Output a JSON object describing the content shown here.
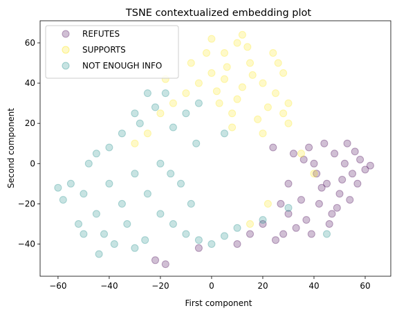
{
  "chart_data": {
    "type": "scatter",
    "title": "TSNE contextualized embedding plot",
    "xlabel": "First component",
    "ylabel": "Second component",
    "xlim": [
      -67,
      70
    ],
    "ylim": [
      -56,
      71
    ],
    "xticks": [
      -60,
      -40,
      -20,
      0,
      20,
      40,
      60
    ],
    "yticks": [
      -40,
      -20,
      0,
      20,
      40,
      60
    ],
    "grid": false,
    "legend_position": "top-left",
    "point_alpha": 0.25,
    "series": [
      {
        "name": "REFUTES",
        "color": "#440154",
        "points": [
          [
            48,
            5
          ],
          [
            52,
            0
          ],
          [
            55,
            -5
          ],
          [
            45,
            -10
          ],
          [
            40,
            0
          ],
          [
            58,
            2
          ],
          [
            50,
            -15
          ],
          [
            42,
            -20
          ],
          [
            35,
            -18
          ],
          [
            30,
            -25
          ],
          [
            38,
            8
          ],
          [
            44,
            10
          ],
          [
            60,
            -3
          ],
          [
            62,
            -1
          ],
          [
            47,
            -25
          ],
          [
            33,
            -32
          ],
          [
            28,
            -35
          ],
          [
            25,
            -38
          ],
          [
            20,
            -30
          ],
          [
            36,
            2
          ],
          [
            53,
            10
          ],
          [
            57,
            -10
          ],
          [
            41,
            -5
          ],
          [
            46,
            -30
          ],
          [
            39,
            -35
          ],
          [
            32,
            5
          ],
          [
            30,
            -10
          ],
          [
            27,
            -20
          ],
          [
            49,
            -22
          ],
          [
            54,
            -18
          ],
          [
            -22,
            -48
          ],
          [
            -18,
            -50
          ],
          [
            15,
            -35
          ],
          [
            10,
            -40
          ],
          [
            -5,
            -42
          ],
          [
            24,
            8
          ],
          [
            56,
            6
          ],
          [
            43,
            -12
          ],
          [
            37,
            -28
          ],
          [
            51,
            -8
          ]
        ]
      },
      {
        "name": "SUPPORTS",
        "color": "#fde725",
        "points": [
          [
            5,
            55
          ],
          [
            10,
            60
          ],
          [
            0,
            45
          ],
          [
            15,
            50
          ],
          [
            20,
            40
          ],
          [
            25,
            35
          ],
          [
            28,
            45
          ],
          [
            12,
            38
          ],
          [
            3,
            30
          ],
          [
            8,
            25
          ],
          [
            -5,
            40
          ],
          [
            -10,
            35
          ],
          [
            18,
            22
          ],
          [
            22,
            28
          ],
          [
            -15,
            30
          ],
          [
            0,
            62
          ],
          [
            6,
            48
          ],
          [
            14,
            58
          ],
          [
            26,
            50
          ],
          [
            30,
            20
          ],
          [
            -8,
            50
          ],
          [
            10,
            32
          ],
          [
            16,
            44
          ],
          [
            2,
            36
          ],
          [
            -2,
            55
          ],
          [
            24,
            55
          ],
          [
            12,
            64
          ],
          [
            20,
            15
          ],
          [
            -20,
            25
          ],
          [
            30,
            30
          ],
          [
            -18,
            42
          ],
          [
            8,
            18
          ],
          [
            28,
            25
          ],
          [
            -25,
            15
          ],
          [
            35,
            5
          ],
          [
            40,
            -5
          ],
          [
            22,
            -20
          ],
          [
            15,
            -30
          ],
          [
            -30,
            10
          ],
          [
            5,
            42
          ]
        ]
      },
      {
        "name": "NOT ENOUGH INFO",
        "color": "#21908d",
        "points": [
          [
            -40,
            -10
          ],
          [
            -50,
            -15
          ],
          [
            -35,
            -20
          ],
          [
            -45,
            -25
          ],
          [
            -55,
            -10
          ],
          [
            -30,
            -5
          ],
          [
            -25,
            -15
          ],
          [
            -20,
            -25
          ],
          [
            -15,
            -30
          ],
          [
            -10,
            -35
          ],
          [
            -5,
            -38
          ],
          [
            0,
            -40
          ],
          [
            5,
            -36
          ],
          [
            10,
            -32
          ],
          [
            -42,
            -35
          ],
          [
            -38,
            -40
          ],
          [
            -30,
            -42
          ],
          [
            -52,
            -30
          ],
          [
            -58,
            -18
          ],
          [
            -60,
            -12
          ],
          [
            -48,
            0
          ],
          [
            -40,
            8
          ],
          [
            -35,
            15
          ],
          [
            -28,
            20
          ],
          [
            -22,
            28
          ],
          [
            -18,
            35
          ],
          [
            -15,
            18
          ],
          [
            -10,
            25
          ],
          [
            -5,
            30
          ],
          [
            -25,
            35
          ],
          [
            -30,
            25
          ],
          [
            -45,
            5
          ],
          [
            -20,
            0
          ],
          [
            -12,
            -10
          ],
          [
            -8,
            -20
          ],
          [
            20,
            -28
          ],
          [
            30,
            -22
          ],
          [
            45,
            -35
          ],
          [
            -33,
            -30
          ],
          [
            -50,
            -35
          ],
          [
            -44,
            -45
          ],
          [
            -26,
            -38
          ],
          [
            -16,
            -5
          ],
          [
            -6,
            10
          ],
          [
            5,
            15
          ]
        ]
      }
    ]
  }
}
